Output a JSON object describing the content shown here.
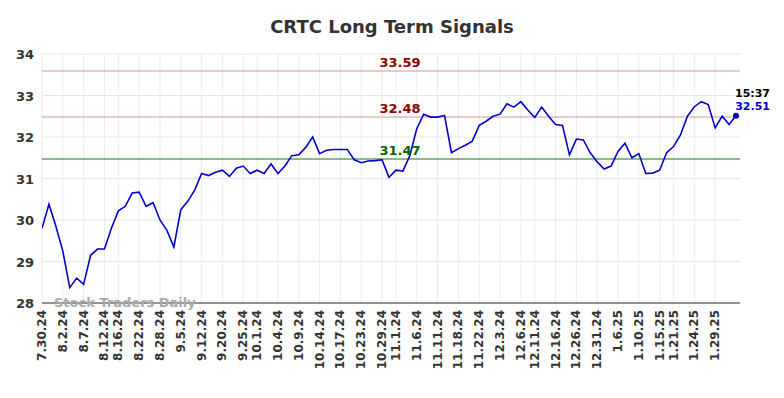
{
  "chart_data": {
    "type": "line",
    "title": "CRTC Long Term Signals",
    "watermark": "Stock Traders Daily",
    "categories": [
      "7.30.24",
      null,
      null,
      "8.2.24",
      null,
      null,
      "8.7.24",
      null,
      null,
      "8.12.24",
      null,
      "8.16.24",
      null,
      null,
      "8.22.24",
      null,
      null,
      "8.28.24",
      null,
      null,
      "9.5.24",
      null,
      null,
      "9.12.24",
      null,
      null,
      "9.20.24",
      null,
      null,
      "9.25.24",
      null,
      "10.1.24",
      null,
      null,
      "10.4.24",
      null,
      null,
      "10.9.24",
      null,
      null,
      "10.14.24",
      null,
      null,
      "10.17.24",
      null,
      null,
      "10.23.24",
      null,
      null,
      "10.29.24",
      null,
      "11.1.24",
      null,
      null,
      "11.6.24",
      null,
      null,
      "11.11.24",
      null,
      null,
      "11.18.24",
      null,
      null,
      "11.22.24",
      null,
      null,
      "12.3.24",
      null,
      null,
      "12.6.24",
      null,
      "12.11.24",
      null,
      null,
      "12.16.24",
      null,
      null,
      "12.26.24",
      null,
      null,
      "12.31.24",
      null,
      null,
      "1.6.25",
      null,
      null,
      "1.10.25",
      null,
      null,
      "1.15.25",
      null,
      "1.21.25",
      null,
      null,
      "1.24.25",
      null,
      null,
      "1.29.25",
      null,
      null,
      null
    ],
    "series": [
      {
        "name": "CRTC",
        "color": "#0000cc",
        "values": [
          29.8,
          30.38,
          29.85,
          29.25,
          28.37,
          28.6,
          28.45,
          29.15,
          29.3,
          29.3,
          29.8,
          30.22,
          30.33,
          30.65,
          30.67,
          30.33,
          30.42,
          30.0,
          29.75,
          29.35,
          30.25,
          30.45,
          30.72,
          31.12,
          31.07,
          31.15,
          31.2,
          31.05,
          31.25,
          31.3,
          31.12,
          31.2,
          31.12,
          31.35,
          31.12,
          31.3,
          31.55,
          31.57,
          31.75,
          32.0,
          31.6,
          31.68,
          31.7,
          31.7,
          31.7,
          31.45,
          31.38,
          31.42,
          31.43,
          31.45,
          31.03,
          31.2,
          31.18,
          31.55,
          32.2,
          32.55,
          32.48,
          32.48,
          32.52,
          31.62,
          31.72,
          31.8,
          31.9,
          32.28,
          32.38,
          32.5,
          32.55,
          32.8,
          32.72,
          32.85,
          32.65,
          32.47,
          32.72,
          32.5,
          32.3,
          32.28,
          31.57,
          31.95,
          31.93,
          31.62,
          31.4,
          31.23,
          31.3,
          31.65,
          31.85,
          31.5,
          31.6,
          31.12,
          31.13,
          31.2,
          31.62,
          31.77,
          32.05,
          32.5,
          32.73,
          32.85,
          32.78,
          32.22,
          32.5,
          32.3,
          32.51
        ]
      }
    ],
    "reference_lines": [
      {
        "value": 33.59,
        "label": "33.59",
        "color": "#8b0000"
      },
      {
        "value": 32.48,
        "label": "32.48",
        "color": "#8b0000"
      },
      {
        "value": 31.47,
        "label": "31.47",
        "color": "#006400"
      }
    ],
    "last_point": {
      "time": "15:37",
      "value": 32.51,
      "label": "32.51"
    },
    "ylim": [
      28,
      34
    ],
    "yticks": [
      28,
      29,
      30,
      31,
      32,
      33,
      34
    ],
    "grid": true
  }
}
